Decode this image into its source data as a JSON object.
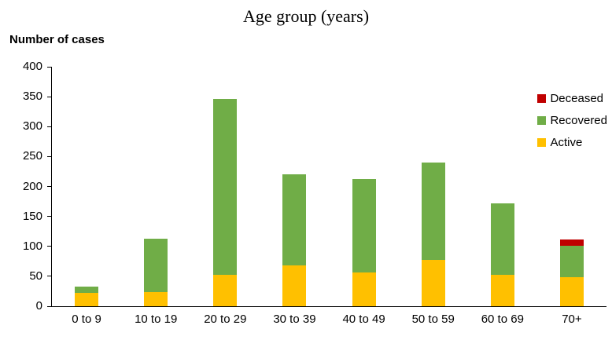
{
  "chart_data": {
    "type": "bar",
    "stacked": true,
    "title": "Age group (years)",
    "xlabel": "",
    "ylabel": "Number of cases",
    "categories": [
      "0 to 9",
      "10 to 19",
      "20 to 29",
      "30 to 39",
      "40 to 49",
      "50 to 59",
      "60 to 69",
      "70+"
    ],
    "series": [
      {
        "name": "Active",
        "color": "#FFC000",
        "values": [
          22,
          23,
          53,
          68,
          56,
          77,
          53,
          48
        ]
      },
      {
        "name": "Recovered",
        "color": "#70AD47",
        "values": [
          11,
          90,
          293,
          152,
          156,
          163,
          119,
          53
        ]
      },
      {
        "name": "Deceased",
        "color": "#C00000",
        "values": [
          0,
          0,
          0,
          0,
          0,
          0,
          0,
          10
        ]
      }
    ],
    "legend": [
      "Deceased",
      "Recovered",
      "Active"
    ],
    "legend_position": "right",
    "ylim": [
      0,
      400
    ],
    "ytick_step": 50,
    "grid": false
  }
}
